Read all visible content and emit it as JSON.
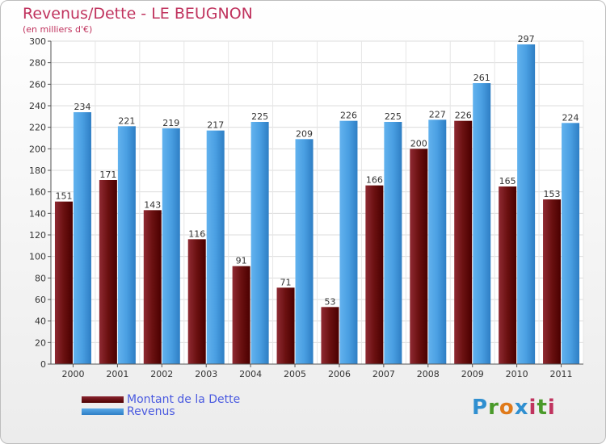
{
  "chart_data": {
    "type": "bar",
    "title": "Revenus/Dette - LE BEUGNON",
    "subtitle": "(en milliers d'€)",
    "categories": [
      "2000",
      "2001",
      "2002",
      "2003",
      "2004",
      "2005",
      "2006",
      "2007",
      "2008",
      "2009",
      "2010",
      "2011"
    ],
    "series": [
      {
        "name": "Montant de la Dette",
        "color": "#6e1414",
        "values": [
          151,
          171,
          143,
          116,
          91,
          71,
          53,
          166,
          200,
          226,
          165,
          153
        ]
      },
      {
        "name": "Revenus",
        "color": "#4aa0e6",
        "values": [
          234,
          221,
          219,
          217,
          225,
          209,
          226,
          225,
          227,
          261,
          297,
          224
        ]
      }
    ],
    "ylim": [
      0,
      300
    ],
    "yticks": [
      0,
      20,
      40,
      60,
      80,
      100,
      120,
      140,
      160,
      180,
      200,
      220,
      240,
      260,
      280,
      300
    ],
    "grid": true,
    "legend": "bottom-left"
  },
  "logo": {
    "text": "Proxiti",
    "letters": [
      "P",
      "r",
      "o",
      "x",
      "i",
      "t",
      "i"
    ]
  }
}
